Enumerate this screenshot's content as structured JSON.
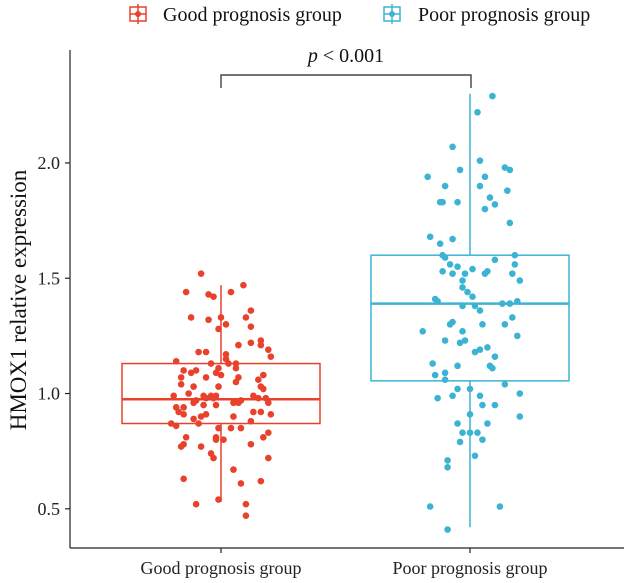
{
  "chart_data": {
    "type": "boxplot",
    "title": "",
    "xlabel": "",
    "ylabel": "HMOX1 relative expression",
    "categories": [
      "Good prognosis group",
      "Poor prognosis group"
    ],
    "ylim": [
      0.33,
      2.49
    ],
    "yticks": [
      "0.5",
      "1.0",
      "1.5",
      "2.0"
    ],
    "grid": false,
    "legend": {
      "placement": "top-right",
      "entries": [
        "Good prognosis group",
        "Poor prognosis group"
      ]
    },
    "annotation": {
      "text_italic": "p",
      "text_rest": " < 0.001",
      "between": [
        "Good prognosis group",
        "Poor prognosis group"
      ]
    },
    "colors": {
      "Good prognosis group": "#E8412C",
      "Poor prognosis group": "#3DB3D4"
    },
    "series": [
      {
        "name": "Good prognosis group",
        "box": {
          "whisker_low": 0.53,
          "q1": 0.87,
          "median": 0.975,
          "q3": 1.13,
          "whisker_high": 1.47
        },
        "points": [
          [
            -0.08,
            1.52
          ],
          [
            -0.14,
            1.44
          ],
          [
            0.09,
            1.47
          ],
          [
            0.04,
            1.44
          ],
          [
            -0.05,
            1.43
          ],
          [
            -0.03,
            1.42
          ],
          [
            0.12,
            1.36
          ],
          [
            0.1,
            1.33
          ],
          [
            -0.12,
            1.33
          ],
          [
            -0.05,
            1.32
          ],
          [
            0.0,
            1.33
          ],
          [
            0.02,
            1.3
          ],
          [
            0.12,
            1.29
          ],
          [
            -0.01,
            1.28
          ],
          [
            0.07,
            1.21
          ],
          [
            0.12,
            1.22
          ],
          [
            0.16,
            1.23
          ],
          [
            0.16,
            1.21
          ],
          [
            0.19,
            1.19
          ],
          [
            0.2,
            1.16
          ],
          [
            -0.09,
            1.18
          ],
          [
            -0.06,
            1.18
          ],
          [
            -0.18,
            1.14
          ],
          [
            -0.04,
            1.13
          ],
          [
            0.02,
            1.17
          ],
          [
            0.02,
            1.15
          ],
          [
            0.03,
            1.13
          ],
          [
            0.06,
            1.13
          ],
          [
            0.06,
            1.11
          ],
          [
            -0.15,
            1.1
          ],
          [
            -0.12,
            1.09
          ],
          [
            -0.1,
            1.1
          ],
          [
            -0.01,
            1.11
          ],
          [
            -0.02,
            1.09
          ],
          [
            0.0,
            1.08
          ],
          [
            -0.16,
            1.07
          ],
          [
            -0.06,
            1.07
          ],
          [
            0.07,
            1.07
          ],
          [
            0.06,
            1.05
          ],
          [
            0.17,
            1.08
          ],
          [
            0.15,
            1.06
          ],
          [
            -0.16,
            1.04
          ],
          [
            -0.11,
            1.03
          ],
          [
            -0.01,
            1.03
          ],
          [
            0.16,
            1.03
          ],
          [
            0.17,
            1.02
          ],
          [
            -0.13,
            1.0
          ],
          [
            -0.19,
            0.99
          ],
          [
            -0.07,
            0.99
          ],
          [
            -0.04,
            0.99
          ],
          [
            -0.02,
            0.99
          ],
          [
            -0.1,
            0.97
          ],
          [
            -0.06,
            0.98
          ],
          [
            -0.03,
            0.98
          ],
          [
            0.13,
            0.99
          ],
          [
            0.15,
            0.98
          ],
          [
            0.18,
            0.98
          ],
          [
            0.05,
            0.96
          ],
          [
            0.07,
            0.96
          ],
          [
            0.08,
            0.97
          ],
          [
            -0.02,
            0.95
          ],
          [
            -0.18,
            0.94
          ],
          [
            -0.15,
            0.94
          ],
          [
            -0.11,
            0.96
          ],
          [
            -0.07,
            0.95
          ],
          [
            0.19,
            0.96
          ],
          [
            -0.17,
            0.92
          ],
          [
            -0.15,
            0.91
          ],
          [
            -0.08,
            0.9
          ],
          [
            -0.06,
            0.91
          ],
          [
            -0.11,
            0.89
          ],
          [
            0.05,
            0.9
          ],
          [
            0.13,
            0.92
          ],
          [
            0.16,
            0.92
          ],
          [
            0.2,
            0.91
          ],
          [
            0.12,
            0.88
          ],
          [
            -0.2,
            0.87
          ],
          [
            -0.18,
            0.86
          ],
          [
            -0.09,
            0.87
          ],
          [
            -0.01,
            0.85
          ],
          [
            0.04,
            0.85
          ],
          [
            0.08,
            0.85
          ],
          [
            0.19,
            0.83
          ],
          [
            0.17,
            0.81
          ],
          [
            -0.14,
            0.81
          ],
          [
            -0.15,
            0.78
          ],
          [
            -0.16,
            0.77
          ],
          [
            -0.02,
            0.81
          ],
          [
            -0.02,
            0.8
          ],
          [
            0.01,
            0.8
          ],
          [
            -0.08,
            0.77
          ],
          [
            0.12,
            0.78
          ],
          [
            -0.04,
            0.74
          ],
          [
            -0.03,
            0.72
          ],
          [
            0.19,
            0.72
          ],
          [
            0.05,
            0.67
          ],
          [
            -0.15,
            0.63
          ],
          [
            0.08,
            0.61
          ],
          [
            0.16,
            0.62
          ],
          [
            -0.1,
            0.52
          ],
          [
            -0.01,
            0.54
          ],
          [
            0.1,
            0.52
          ],
          [
            0.1,
            0.47
          ]
        ]
      },
      {
        "name": "Poor prognosis group",
        "box": {
          "whisker_low": 0.42,
          "q1": 1.055,
          "median": 1.39,
          "q3": 1.6,
          "whisker_high": 2.3
        },
        "points": [
          [
            0.09,
            2.29
          ],
          [
            0.03,
            2.22
          ],
          [
            -0.07,
            2.07
          ],
          [
            0.04,
            2.01
          ],
          [
            -0.04,
            1.97
          ],
          [
            0.14,
            1.98
          ],
          [
            0.16,
            1.97
          ],
          [
            -0.17,
            1.94
          ],
          [
            0.06,
            1.94
          ],
          [
            -0.1,
            1.9
          ],
          [
            0.04,
            1.9
          ],
          [
            0.15,
            1.88
          ],
          [
            0.08,
            1.85
          ],
          [
            -0.12,
            1.83
          ],
          [
            -0.11,
            1.83
          ],
          [
            -0.05,
            1.83
          ],
          [
            0.06,
            1.8
          ],
          [
            0.1,
            1.82
          ],
          [
            0.16,
            1.74
          ],
          [
            -0.16,
            1.68
          ],
          [
            -0.07,
            1.67
          ],
          [
            -0.12,
            1.65
          ],
          [
            -0.11,
            1.6
          ],
          [
            -0.1,
            1.59
          ],
          [
            0.1,
            1.58
          ],
          [
            0.18,
            1.6
          ],
          [
            -0.08,
            1.56
          ],
          [
            -0.05,
            1.55
          ],
          [
            0.18,
            1.56
          ],
          [
            -0.11,
            1.53
          ],
          [
            -0.07,
            1.52
          ],
          [
            -0.02,
            1.52
          ],
          [
            0.01,
            1.54
          ],
          [
            0.07,
            1.53
          ],
          [
            0.06,
            1.52
          ],
          [
            0.17,
            1.52
          ],
          [
            0.2,
            1.49
          ],
          [
            -0.03,
            1.49
          ],
          [
            -0.03,
            1.46
          ],
          [
            -0.01,
            1.44
          ],
          [
            0.01,
            1.42
          ],
          [
            -0.14,
            1.41
          ],
          [
            -0.13,
            1.4
          ],
          [
            -0.03,
            1.38
          ],
          [
            0.02,
            1.38
          ],
          [
            0.04,
            1.36
          ],
          [
            0.13,
            1.39
          ],
          [
            0.16,
            1.39
          ],
          [
            0.19,
            1.4
          ],
          [
            -0.08,
            1.3
          ],
          [
            -0.07,
            1.31
          ],
          [
            0.05,
            1.3
          ],
          [
            0.14,
            1.3
          ],
          [
            0.17,
            1.33
          ],
          [
            -0.19,
            1.27
          ],
          [
            -0.03,
            1.27
          ],
          [
            0.19,
            1.25
          ],
          [
            -0.1,
            1.23
          ],
          [
            -0.02,
            1.23
          ],
          [
            -0.04,
            1.22
          ],
          [
            0.02,
            1.18
          ],
          [
            0.04,
            1.19
          ],
          [
            0.07,
            1.2
          ],
          [
            0.1,
            1.16
          ],
          [
            -0.15,
            1.13
          ],
          [
            -0.05,
            1.12
          ],
          [
            0.08,
            1.12
          ],
          [
            0.09,
            1.11
          ],
          [
            -0.14,
            1.08
          ],
          [
            -0.1,
            1.09
          ],
          [
            -0.1,
            1.06
          ],
          [
            0.14,
            1.04
          ],
          [
            -0.05,
            1.02
          ],
          [
            0.0,
            1.02
          ],
          [
            0.2,
            1.0
          ],
          [
            -0.13,
            0.98
          ],
          [
            -0.07,
            0.99
          ],
          [
            0.04,
            0.99
          ],
          [
            0.05,
            0.95
          ],
          [
            0.1,
            0.95
          ],
          [
            0.0,
            0.91
          ],
          [
            0.2,
            0.9
          ],
          [
            -0.05,
            0.87
          ],
          [
            0.07,
            0.87
          ],
          [
            -0.03,
            0.83
          ],
          [
            0.0,
            0.83
          ],
          [
            0.03,
            0.83
          ],
          [
            0.05,
            0.8
          ],
          [
            -0.04,
            0.79
          ],
          [
            0.02,
            0.73
          ],
          [
            -0.09,
            0.71
          ],
          [
            -0.09,
            0.68
          ],
          [
            -0.16,
            0.51
          ],
          [
            0.12,
            0.51
          ],
          [
            -0.09,
            0.41
          ]
        ]
      }
    ]
  }
}
